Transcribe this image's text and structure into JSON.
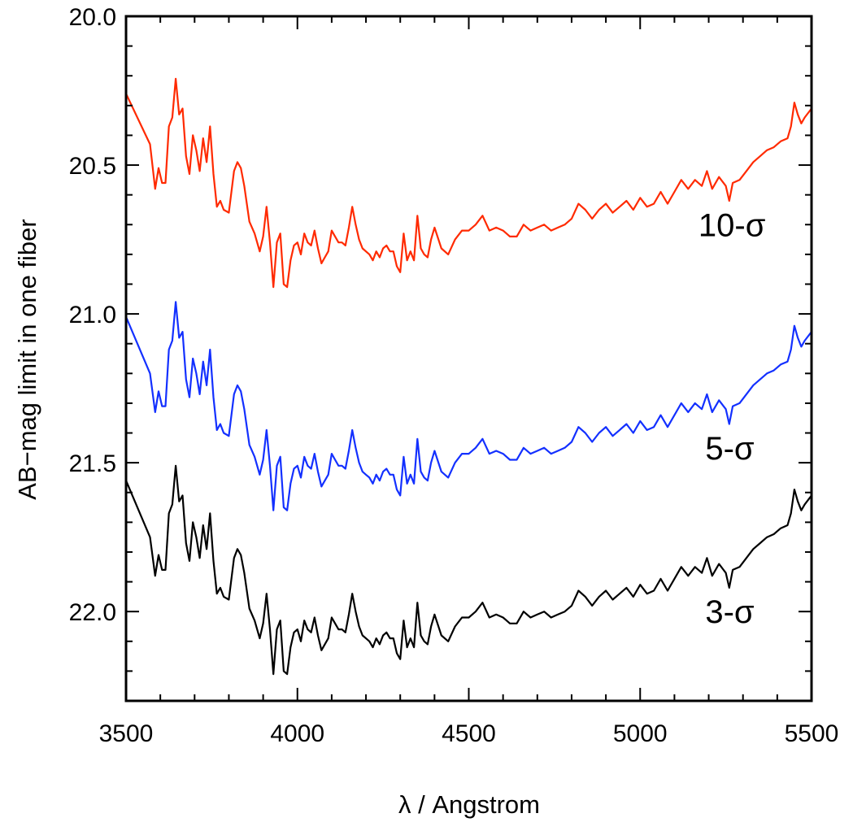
{
  "chart_data": {
    "type": "line",
    "xlabel": "λ / Angstrom",
    "ylabel": "AB−mag limit in one fiber",
    "xlim": [
      3500,
      5500
    ],
    "ylim": [
      22.3,
      20.0
    ],
    "y_inverted": true,
    "grid": false,
    "x_ticks": [
      3500,
      4000,
      4500,
      5000,
      5500
    ],
    "x_tick_labels": [
      "3500",
      "4000",
      "4500",
      "5000",
      "5500"
    ],
    "y_ticks": [
      20.0,
      20.5,
      21.0,
      21.5,
      22.0
    ],
    "y_tick_labels": [
      "20.0",
      "20.5",
      "21.0",
      "21.5",
      "22.0"
    ],
    "series": [
      {
        "name": "10-σ",
        "color": "#ff2a00",
        "x": [
          3500,
          3570,
          3585,
          3595,
          3605,
          3615,
          3625,
          3635,
          3645,
          3655,
          3665,
          3675,
          3685,
          3695,
          3705,
          3715,
          3725,
          3735,
          3745,
          3755,
          3765,
          3775,
          3785,
          3800,
          3815,
          3825,
          3835,
          3845,
          3860,
          3875,
          3890,
          3900,
          3910,
          3920,
          3930,
          3940,
          3950,
          3960,
          3970,
          3980,
          3990,
          4000,
          4010,
          4020,
          4030,
          4040,
          4050,
          4060,
          4070,
          4080,
          4090,
          4100,
          4110,
          4120,
          4130,
          4140,
          4150,
          4160,
          4170,
          4180,
          4190,
          4200,
          4210,
          4220,
          4230,
          4240,
          4250,
          4260,
          4270,
          4280,
          4290,
          4300,
          4310,
          4320,
          4330,
          4340,
          4350,
          4360,
          4370,
          4380,
          4390,
          4400,
          4420,
          4440,
          4460,
          4480,
          4500,
          4520,
          4540,
          4560,
          4580,
          4600,
          4620,
          4640,
          4660,
          4680,
          4700,
          4720,
          4740,
          4760,
          4780,
          4800,
          4820,
          4840,
          4860,
          4880,
          4900,
          4920,
          4940,
          4960,
          4980,
          5000,
          5020,
          5040,
          5060,
          5080,
          5100,
          5120,
          5140,
          5160,
          5180,
          5195,
          5210,
          5230,
          5250,
          5260,
          5270,
          5290,
          5310,
          5330,
          5350,
          5370,
          5390,
          5410,
          5430,
          5440,
          5450,
          5460,
          5470,
          5480,
          5500
        ],
        "y": [
          20.26,
          20.43,
          20.58,
          20.51,
          20.56,
          20.56,
          20.37,
          20.34,
          20.21,
          20.33,
          20.31,
          20.47,
          20.53,
          20.4,
          20.45,
          20.52,
          20.41,
          20.49,
          20.37,
          20.53,
          20.64,
          20.62,
          20.65,
          20.66,
          20.52,
          20.49,
          20.51,
          20.57,
          20.69,
          20.73,
          20.79,
          20.74,
          20.64,
          20.76,
          20.91,
          20.76,
          20.73,
          20.9,
          20.91,
          20.82,
          20.77,
          20.76,
          20.8,
          20.73,
          20.76,
          20.77,
          20.72,
          20.78,
          20.83,
          20.81,
          20.79,
          20.72,
          20.74,
          20.76,
          20.76,
          20.77,
          20.71,
          20.64,
          20.7,
          20.75,
          20.78,
          20.79,
          20.8,
          20.82,
          20.79,
          20.81,
          20.78,
          20.77,
          20.79,
          20.79,
          20.84,
          20.86,
          20.73,
          20.82,
          20.79,
          20.82,
          20.67,
          20.78,
          20.8,
          20.81,
          20.75,
          20.71,
          20.78,
          20.8,
          20.75,
          20.72,
          20.72,
          20.7,
          20.67,
          20.72,
          20.71,
          20.72,
          20.74,
          20.74,
          20.7,
          20.72,
          20.71,
          20.7,
          20.72,
          20.71,
          20.7,
          20.68,
          20.63,
          20.65,
          20.68,
          20.65,
          20.63,
          20.66,
          20.64,
          20.62,
          20.65,
          20.61,
          20.64,
          20.63,
          20.59,
          20.63,
          20.59,
          20.55,
          20.58,
          20.55,
          20.57,
          20.52,
          20.58,
          20.54,
          20.57,
          20.62,
          20.56,
          20.55,
          20.52,
          20.49,
          20.47,
          20.45,
          20.44,
          20.42,
          20.41,
          20.37,
          20.29,
          20.33,
          20.36,
          20.34,
          20.31
        ]
      },
      {
        "name": "5-σ",
        "color": "#1330ff",
        "x": [
          3500,
          3570,
          3585,
          3595,
          3605,
          3615,
          3625,
          3635,
          3645,
          3655,
          3665,
          3675,
          3685,
          3695,
          3705,
          3715,
          3725,
          3735,
          3745,
          3755,
          3765,
          3775,
          3785,
          3800,
          3815,
          3825,
          3835,
          3845,
          3860,
          3875,
          3890,
          3900,
          3910,
          3920,
          3930,
          3940,
          3950,
          3960,
          3970,
          3980,
          3990,
          4000,
          4010,
          4020,
          4030,
          4040,
          4050,
          4060,
          4070,
          4080,
          4090,
          4100,
          4110,
          4120,
          4130,
          4140,
          4150,
          4160,
          4170,
          4180,
          4190,
          4200,
          4210,
          4220,
          4230,
          4240,
          4250,
          4260,
          4270,
          4280,
          4290,
          4300,
          4310,
          4320,
          4330,
          4340,
          4350,
          4360,
          4370,
          4380,
          4390,
          4400,
          4420,
          4440,
          4460,
          4480,
          4500,
          4520,
          4540,
          4560,
          4580,
          4600,
          4620,
          4640,
          4660,
          4680,
          4700,
          4720,
          4740,
          4760,
          4780,
          4800,
          4820,
          4840,
          4860,
          4880,
          4900,
          4920,
          4940,
          4960,
          4980,
          5000,
          5020,
          5040,
          5060,
          5080,
          5100,
          5120,
          5140,
          5160,
          5180,
          5195,
          5210,
          5230,
          5250,
          5260,
          5270,
          5290,
          5310,
          5330,
          5350,
          5370,
          5390,
          5410,
          5430,
          5440,
          5450,
          5460,
          5470,
          5480,
          5500
        ],
        "y": [
          21.01,
          21.2,
          21.33,
          21.26,
          21.31,
          21.31,
          21.12,
          21.09,
          20.96,
          21.08,
          21.06,
          21.22,
          21.28,
          21.15,
          21.2,
          21.27,
          21.16,
          21.24,
          21.12,
          21.28,
          21.39,
          21.37,
          21.4,
          21.41,
          21.27,
          21.24,
          21.26,
          21.32,
          21.44,
          21.48,
          21.54,
          21.49,
          21.39,
          21.51,
          21.66,
          21.51,
          21.48,
          21.65,
          21.66,
          21.57,
          21.52,
          21.51,
          21.55,
          21.48,
          21.51,
          21.52,
          21.47,
          21.53,
          21.58,
          21.56,
          21.54,
          21.47,
          21.49,
          21.51,
          21.51,
          21.52,
          21.46,
          21.39,
          21.45,
          21.5,
          21.53,
          21.54,
          21.55,
          21.57,
          21.54,
          21.56,
          21.53,
          21.52,
          21.54,
          21.54,
          21.59,
          21.61,
          21.48,
          21.57,
          21.54,
          21.57,
          21.42,
          21.53,
          21.55,
          21.56,
          21.5,
          21.46,
          21.53,
          21.55,
          21.5,
          21.47,
          21.47,
          21.45,
          21.42,
          21.47,
          21.46,
          21.47,
          21.49,
          21.49,
          21.45,
          21.47,
          21.46,
          21.45,
          21.47,
          21.46,
          21.45,
          21.43,
          21.38,
          21.4,
          21.43,
          21.4,
          21.38,
          21.41,
          21.39,
          21.37,
          21.4,
          21.36,
          21.39,
          21.38,
          21.34,
          21.38,
          21.34,
          21.3,
          21.33,
          21.3,
          21.32,
          21.27,
          21.33,
          21.29,
          21.32,
          21.37,
          21.31,
          21.3,
          21.27,
          21.24,
          21.22,
          21.2,
          21.19,
          21.17,
          21.16,
          21.12,
          21.04,
          21.08,
          21.11,
          21.09,
          21.06
        ]
      },
      {
        "name": "3-σ",
        "color": "#000000",
        "x": [
          3500,
          3570,
          3585,
          3595,
          3605,
          3615,
          3625,
          3635,
          3645,
          3655,
          3665,
          3675,
          3685,
          3695,
          3705,
          3715,
          3725,
          3735,
          3745,
          3755,
          3765,
          3775,
          3785,
          3800,
          3815,
          3825,
          3835,
          3845,
          3860,
          3875,
          3890,
          3900,
          3910,
          3920,
          3930,
          3940,
          3950,
          3960,
          3970,
          3980,
          3990,
          4000,
          4010,
          4020,
          4030,
          4040,
          4050,
          4060,
          4070,
          4080,
          4090,
          4100,
          4110,
          4120,
          4130,
          4140,
          4150,
          4160,
          4170,
          4180,
          4190,
          4200,
          4210,
          4220,
          4230,
          4240,
          4250,
          4260,
          4270,
          4280,
          4290,
          4300,
          4310,
          4320,
          4330,
          4340,
          4350,
          4360,
          4370,
          4380,
          4390,
          4400,
          4420,
          4440,
          4460,
          4480,
          4500,
          4520,
          4540,
          4560,
          4580,
          4600,
          4620,
          4640,
          4660,
          4680,
          4700,
          4720,
          4740,
          4760,
          4780,
          4800,
          4820,
          4840,
          4860,
          4880,
          4900,
          4920,
          4940,
          4960,
          4980,
          5000,
          5020,
          5040,
          5060,
          5080,
          5100,
          5120,
          5140,
          5160,
          5180,
          5195,
          5210,
          5230,
          5250,
          5260,
          5270,
          5290,
          5310,
          5330,
          5350,
          5370,
          5390,
          5410,
          5430,
          5440,
          5450,
          5460,
          5470,
          5480,
          5500
        ],
        "y": [
          21.56,
          21.75,
          21.88,
          21.81,
          21.86,
          21.86,
          21.67,
          21.64,
          21.51,
          21.63,
          21.61,
          21.77,
          21.83,
          21.7,
          21.75,
          21.82,
          21.71,
          21.79,
          21.67,
          21.83,
          21.94,
          21.92,
          21.95,
          21.96,
          21.82,
          21.79,
          21.81,
          21.87,
          21.99,
          22.03,
          22.09,
          22.04,
          21.94,
          22.06,
          22.21,
          22.06,
          22.03,
          22.2,
          22.21,
          22.12,
          22.07,
          22.06,
          22.1,
          22.03,
          22.06,
          22.07,
          22.02,
          22.08,
          22.13,
          22.11,
          22.09,
          22.02,
          22.04,
          22.06,
          22.06,
          22.07,
          22.01,
          21.94,
          22.0,
          22.05,
          22.08,
          22.09,
          22.1,
          22.12,
          22.09,
          22.11,
          22.08,
          22.07,
          22.09,
          22.09,
          22.14,
          22.16,
          22.03,
          22.12,
          22.09,
          22.12,
          21.97,
          22.08,
          22.1,
          22.11,
          22.05,
          22.01,
          22.08,
          22.1,
          22.05,
          22.02,
          22.02,
          22.0,
          21.97,
          22.02,
          22.01,
          22.02,
          22.04,
          22.04,
          22.0,
          22.02,
          22.01,
          22.0,
          22.02,
          22.01,
          22.0,
          21.98,
          21.93,
          21.95,
          21.98,
          21.95,
          21.93,
          21.96,
          21.94,
          21.92,
          21.95,
          21.91,
          21.94,
          21.93,
          21.89,
          21.93,
          21.89,
          21.85,
          21.88,
          21.85,
          21.87,
          21.82,
          21.88,
          21.84,
          21.87,
          21.92,
          21.86,
          21.85,
          21.82,
          21.79,
          21.77,
          21.75,
          21.74,
          21.72,
          21.71,
          21.67,
          21.59,
          21.63,
          21.66,
          21.64,
          21.61
        ]
      }
    ],
    "series_labels": [
      {
        "text": "10-σ",
        "x": 5170,
        "y": 20.7
      },
      {
        "text": "5-σ",
        "x": 5190,
        "y": 21.45
      },
      {
        "text": "3-σ",
        "x": 5190,
        "y": 22.0
      }
    ]
  }
}
